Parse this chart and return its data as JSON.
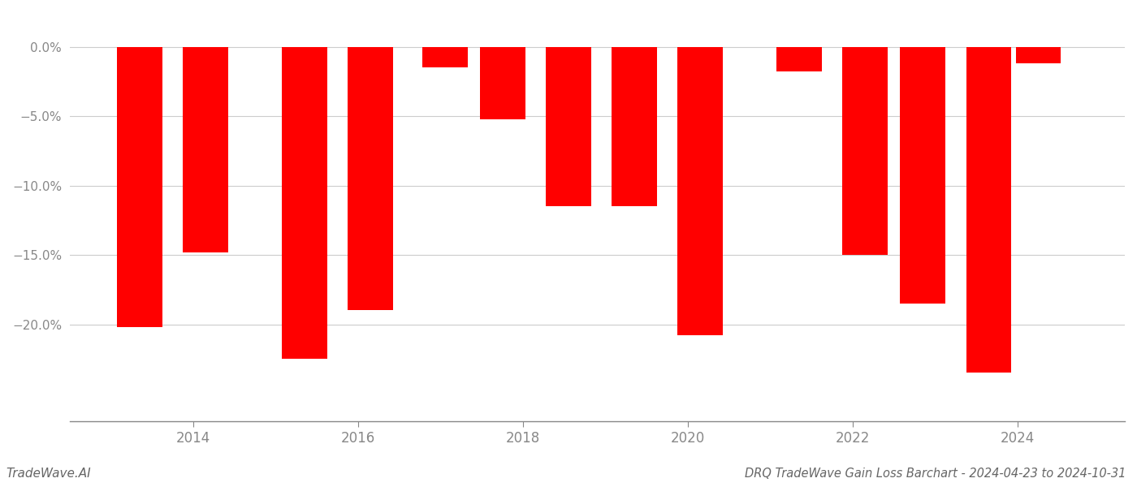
{
  "bar_positions": [
    2013.35,
    2014.15,
    2015.35,
    2016.15,
    2017.05,
    2017.75,
    2018.55,
    2019.35,
    2020.15,
    2021.35,
    2022.15,
    2022.85,
    2023.65,
    2024.25
  ],
  "values": [
    -20.2,
    -14.8,
    -22.5,
    -19.0,
    -1.5,
    -5.2,
    -11.5,
    -11.5,
    -20.8,
    -1.8,
    -15.0,
    -18.5,
    -23.5,
    -1.2
  ],
  "bar_width": 0.55,
  "bar_color": "#ff0000",
  "ylim_min": -27,
  "ylim_max": 2.5,
  "yticks": [
    0.0,
    -5.0,
    -10.0,
    -15.0,
    -20.0
  ],
  "xtick_positions": [
    2014,
    2016,
    2018,
    2020,
    2022,
    2024
  ],
  "xlim_min": 2012.5,
  "xlim_max": 2025.3,
  "title_text": "DRQ TradeWave Gain Loss Barchart - 2024-04-23 to 2024-10-31",
  "watermark_text": "TradeWave.AI",
  "background_color": "#ffffff",
  "grid_color": "#cccccc",
  "title_color": "#666666",
  "watermark_color": "#666666",
  "axis_color": "#888888",
  "tick_color": "#888888"
}
